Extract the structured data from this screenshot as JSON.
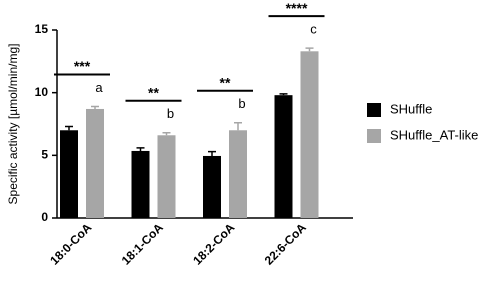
{
  "chart_data": {
    "type": "bar",
    "ylabel": "Specific activity [µmol/min/mg]",
    "categories": [
      "18:0-CoA",
      "18:1-CoA",
      "18:2-CoA",
      "22:6-CoA"
    ],
    "series": [
      {
        "name": "SHuffle",
        "color": "#000000",
        "values": [
          7.0,
          5.35,
          4.95,
          9.8
        ],
        "errors": [
          0.3,
          0.25,
          0.35,
          0.1
        ]
      },
      {
        "name": "SHuffle_AT-like",
        "color": "#a6a6a6",
        "values": [
          8.7,
          6.6,
          7.0,
          13.3
        ],
        "errors": [
          0.2,
          0.2,
          0.6,
          0.25
        ]
      }
    ],
    "ylim": [
      0,
      15
    ],
    "yticks": [
      0,
      5,
      10,
      15
    ],
    "annotations": {
      "significance": [
        "***",
        "**",
        "**",
        "****"
      ],
      "letters": [
        "a",
        "b",
        "b",
        "c"
      ]
    },
    "legend": "right"
  }
}
